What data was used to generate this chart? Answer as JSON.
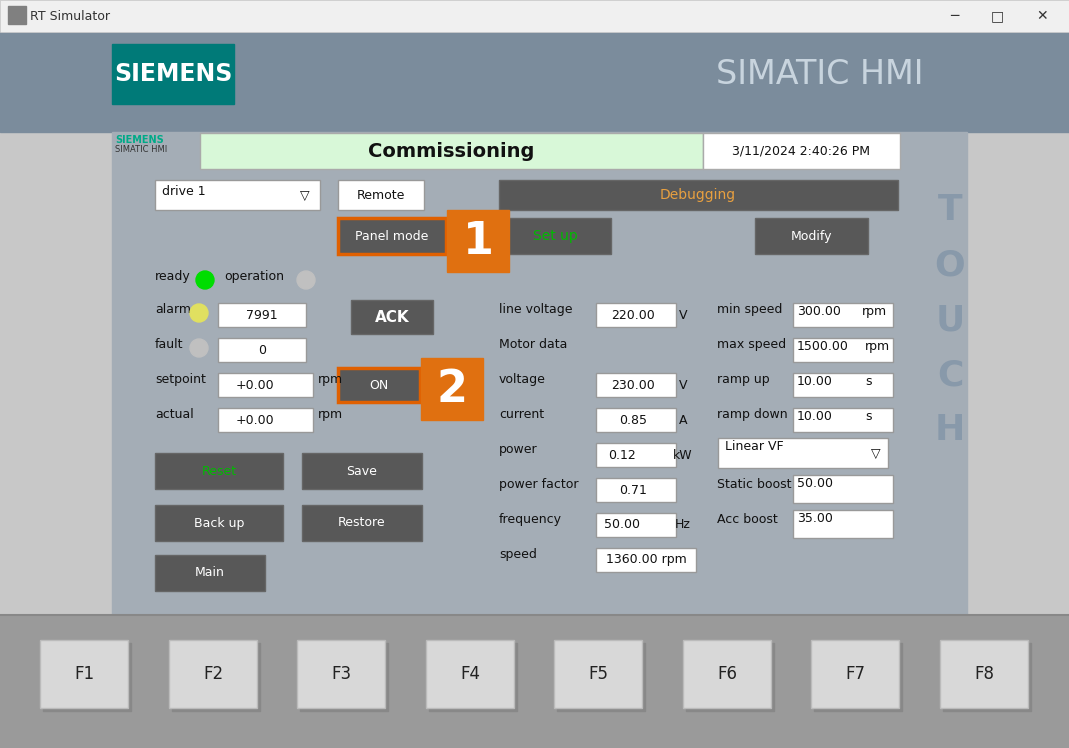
{
  "title_bar_text": "RT Simulator",
  "bg_window": "#f0f0f0",
  "bg_header": "#7b8c9c",
  "bg_content": "#a4adb6",
  "bg_bottom": "#9a9a9a",
  "siemens_logo_bg": "#007a78",
  "siemens_logo_text": "SIEMENS",
  "simatic_hmi_text": "SIMATIC HMI",
  "commissioning_text": "Commissioning",
  "commissioning_bg": "#d8f8d8",
  "datetime_text": "3/11/2024 2:40:26 PM",
  "siemens_small": "SIEMENS",
  "simatic_small": "SIMATIC HMI",
  "drive_label": "drive 1",
  "remote_text": "Remote",
  "debugging_text": "Debugging",
  "debugging_bg": "#585858",
  "debugging_fg": "#e8a040",
  "panel_mode_text": "Panel mode",
  "panel_mode_bg": "#585858",
  "panel_mode_border": "#e06000",
  "orange_bg": "#e07010",
  "setup_text": "Set up",
  "setup_bg": "#585858",
  "setup_fg": "#00bb00",
  "modify_text": "Modify",
  "modify_bg": "#585858",
  "ready_text": "ready",
  "ready_led": "#00dd00",
  "operation_text": "operation",
  "operation_led": "#c0c0c0",
  "alarm_text": "alarm",
  "alarm_led": "#e0e060",
  "alarm_value": "7991",
  "ack_text": "ACK",
  "ack_bg": "#585858",
  "fault_text": "fault",
  "fault_led": "#c0c0c0",
  "fault_value": "0",
  "setpoint_text": "setpoint",
  "setpoint_value": "+0.00",
  "setpoint_unit": "rpm",
  "on_text": "ON",
  "on_bg": "#585858",
  "actual_text": "actual",
  "actual_value": "+0.00",
  "actual_unit": "rpm",
  "reset_text": "Reset",
  "reset_fg": "#00bb00",
  "reset_bg": "#585858",
  "save_text": "Save",
  "save_bg": "#585858",
  "backup_text": "Back up",
  "backup_bg": "#585858",
  "restore_text": "Restore",
  "restore_bg": "#585858",
  "main_text": "Main",
  "main_bg": "#585858",
  "line_voltage_label": "line voltage",
  "line_voltage_value": "220.00",
  "line_voltage_unit": "V",
  "motor_data_label": "Motor data",
  "voltage_label": "voltage",
  "voltage_value": "230.00",
  "voltage_unit": "V",
  "current_label": "current",
  "current_value": "0.85",
  "current_unit": "A",
  "power_label": "power",
  "power_value": "0.12",
  "power_unit": "kW",
  "power_factor_label": "power factor",
  "power_factor_value": "0.71",
  "frequency_label": "frequency",
  "frequency_value": "50.00",
  "frequency_unit": "Hz",
  "speed_label": "speed",
  "speed_value": "1360.00 rpm",
  "min_speed_label": "min speed",
  "min_speed_value": "300.00",
  "min_speed_unit": "rpm",
  "max_speed_label": "max speed",
  "max_speed_value": "1500.00",
  "max_speed_unit": "rpm",
  "ramp_up_label": "ramp up",
  "ramp_up_value": "10.00",
  "ramp_up_unit": "s",
  "ramp_down_label": "ramp down",
  "ramp_down_value": "10.00",
  "ramp_down_unit": "s",
  "linear_vf_text": "Linear VF",
  "static_boost_label": "Static boost",
  "static_boost_value": "50.00",
  "acc_boost_label": "Acc boost",
  "acc_boost_value": "35.00",
  "touch_text": "TOUCH",
  "fkeys": [
    "F1",
    "F2",
    "F3",
    "F4",
    "F5",
    "F6",
    "F7",
    "F8"
  ]
}
